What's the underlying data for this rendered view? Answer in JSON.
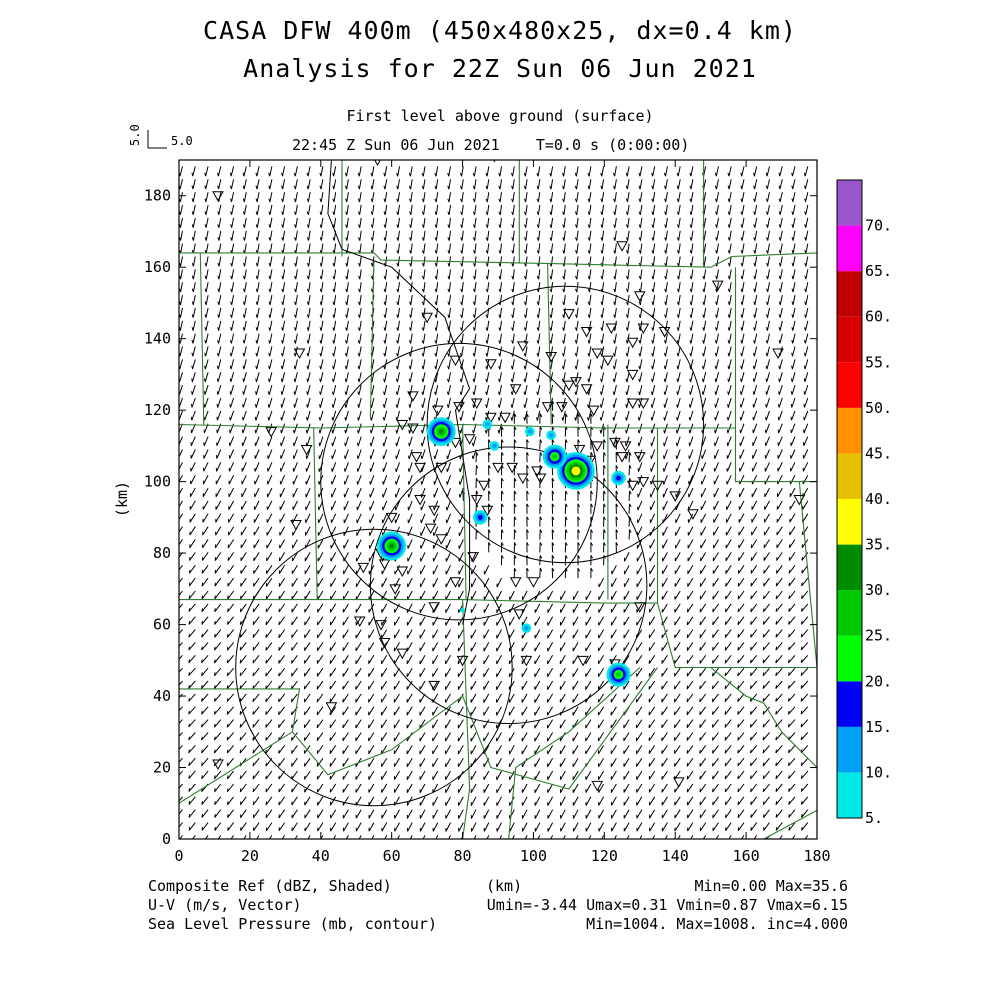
{
  "title_line1": "CASA DFW 400m (450x480x25, dx=0.4 km)",
  "title_line2": "Analysis for 22Z Sun 06 Jun 2021",
  "subtitle": "First level above ground (surface)",
  "time_line": "22:45 Z Sun 06 Jun 2021    T=0.0 s (0:00:00)",
  "ref_vector": {
    "label_top": "5.0",
    "label_right": "5.0"
  },
  "axes": {
    "xlabel": "(km)",
    "ylabel": "(km)",
    "xlim": [
      0,
      180
    ],
    "ylim": [
      0,
      190
    ],
    "x_ticks": [
      "0",
      "20",
      "40",
      "60",
      "80",
      "100",
      "120",
      "140",
      "160",
      "180"
    ],
    "y_ticks": [
      "0",
      "20",
      "40",
      "60",
      "80",
      "100",
      "120",
      "140",
      "160",
      "180"
    ]
  },
  "colorbar": {
    "labels": [
      "5.",
      "10.",
      "15.",
      "20.",
      "25.",
      "30.",
      "35.",
      "40.",
      "45.",
      "50.",
      "55.",
      "60.",
      "65.",
      "70."
    ],
    "colors": [
      "#00e8e8",
      "#00a0f6",
      "#0000f6",
      "#00ff00",
      "#00c800",
      "#008c00",
      "#ffff00",
      "#e7c000",
      "#ff9000",
      "#ff0000",
      "#d60000",
      "#c00000",
      "#ff00ff",
      "#9955c9"
    ]
  },
  "footer": {
    "left1": "Composite Ref (dBZ, Shaded)",
    "left2": "U-V (m/s, Vector)",
    "left3": "Sea Level Pressure (mb, contour)",
    "center": "(km)",
    "right1": "Min=0.00 Max=35.6",
    "right2": "Umin=-3.44 Umax=0.31 Vmin=0.87 Vmax=6.15",
    "right3": "Min=1004. Max=1008. inc=4.000"
  },
  "map_data": {
    "radar_rings_km": [
      {
        "cx": 79,
        "cy": 100,
        "r": 39
      },
      {
        "cx": 109,
        "cy": 116,
        "r": 39
      },
      {
        "cx": 55,
        "cy": 48,
        "r": 39
      },
      {
        "cx": 93,
        "cy": 71,
        "r": 39
      }
    ],
    "echoes_dBZ": [
      {
        "x": 74,
        "y": 114,
        "dbz": 30
      },
      {
        "x": 60,
        "y": 82,
        "dbz": 30
      },
      {
        "x": 112,
        "y": 103,
        "dbz": 35.6
      },
      {
        "x": 106,
        "y": 107,
        "dbz": 25
      },
      {
        "x": 124,
        "y": 46,
        "dbz": 25
      },
      {
        "x": 85,
        "y": 90,
        "dbz": 15
      },
      {
        "x": 124,
        "y": 101,
        "dbz": 15
      },
      {
        "x": 87,
        "y": 116,
        "dbz": 10
      },
      {
        "x": 89,
        "y": 110,
        "dbz": 10
      },
      {
        "x": 99,
        "y": 114,
        "dbz": 10
      },
      {
        "x": 105,
        "y": 113,
        "dbz": 10
      },
      {
        "x": 98,
        "y": 59,
        "dbz": 10
      },
      {
        "x": 80,
        "y": 64,
        "dbz": 8
      }
    ]
  }
}
